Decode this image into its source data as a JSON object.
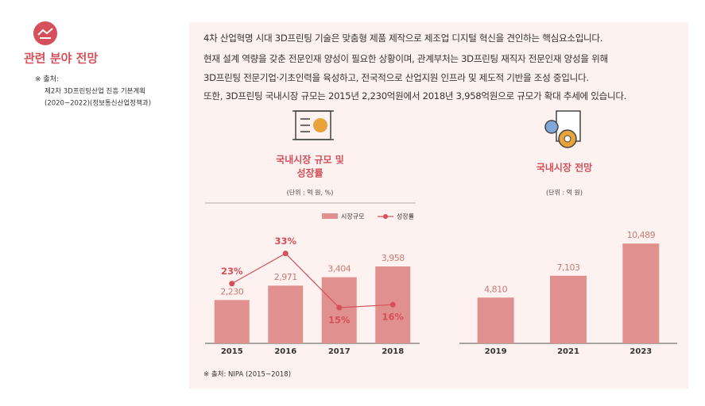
{
  "sidebar": {
    "title": "관련 분야 전망",
    "source_label": "※ 출처:",
    "source_lines": [
      "제2차 3D프린팅산업 진흥 기본계획",
      "(2020~2022)(정보통신산업정책과)"
    ]
  },
  "body": {
    "lines": [
      "4차 산업혁명 시대 3D프린팅 기술은 맞춤형 제품 제작으로 제조업 디지털 혁신을 견인하는 핵심요소입니다.",
      "현재 설계 역량을 갖춘 전문인재 양성이 필요한 상황이며, 관계부처는 3D프린팅 재직자 전문인재 양성을 위해",
      "3D프린팅 전문기업·기초인력을 육성하고, 전국적으로 산업지원 인프라 및 제도적 기반을 조성 중입니다.",
      "또한, 3D프린팅 국내시장 규모는 2015년 2,230억원에서 2018년 3,958억원으로 규모가 확대 추세에 있습니다."
    ]
  },
  "chart_data": [
    {
      "type": "bar",
      "title": [
        "국내시장 규모 및",
        "성장률"
      ],
      "unit": "(단위 : 억 원, %)",
      "categories": [
        "2015",
        "2016",
        "2017",
        "2018"
      ],
      "series": [
        {
          "name": "시장규모",
          "color": "#e0908f",
          "values": [
            2230,
            2971,
            3404,
            3958
          ],
          "value_labels": [
            "2,230",
            "2,971",
            "3,404",
            "3,958"
          ]
        },
        {
          "name": "성장률",
          "type": "line",
          "axis": "y2",
          "color": "#d5505a",
          "values": [
            23,
            33,
            15,
            16
          ],
          "value_labels": [
            "23%",
            "33%",
            "15%",
            "16%"
          ]
        }
      ],
      "legend": "top"
    },
    {
      "type": "bar",
      "title": "국내시장 전망",
      "unit": "(단위 : 억 원)",
      "categories": [
        "2019",
        "2021",
        "2023"
      ],
      "values": [
        4810,
        7103,
        10489
      ],
      "value_labels": [
        "4,810",
        "7,103",
        "10,489"
      ],
      "color": "#e0908f"
    }
  ],
  "source": "※ 출처: NIPA (2015~2018)"
}
